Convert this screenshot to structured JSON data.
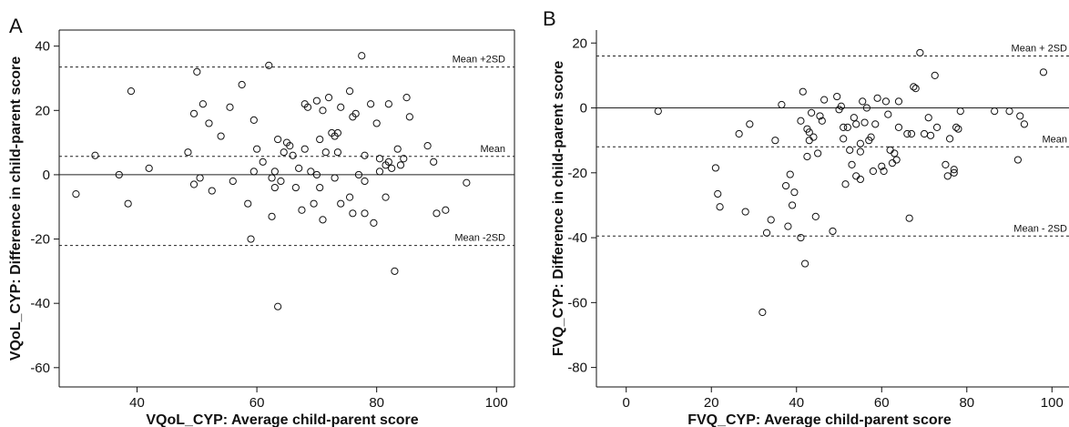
{
  "chart_data": [
    {
      "panel": "A",
      "type": "scatter",
      "xlabel": "VQoL_CYP: Average child-parent score",
      "ylabel": "VQoL_CYP: Difference in child-parent score",
      "xlim": [
        27,
        103
      ],
      "ylim": [
        -66,
        45
      ],
      "xticks": [
        40,
        60,
        80,
        100
      ],
      "yticks": [
        40,
        20,
        0,
        -20,
        -40,
        -60
      ],
      "lines": [
        {
          "label": "Mean +2SD",
          "y": 33.5,
          "style": "dotted"
        },
        {
          "label": "Mean",
          "y": 5.7,
          "style": "dotted"
        },
        {
          "label": "",
          "y": 0,
          "style": "solid"
        },
        {
          "label": "Mean -2SD",
          "y": -22,
          "style": "dotted"
        }
      ],
      "points": [
        [
          29.8,
          -6
        ],
        [
          33,
          6
        ],
        [
          37,
          0
        ],
        [
          38.5,
          -9
        ],
        [
          39,
          26
        ],
        [
          42,
          2
        ],
        [
          48.5,
          7
        ],
        [
          49.5,
          19
        ],
        [
          49.5,
          -3
        ],
        [
          50,
          32
        ],
        [
          50.5,
          -1
        ],
        [
          51,
          22
        ],
        [
          52,
          16
        ],
        [
          52.5,
          -5
        ],
        [
          54,
          12
        ],
        [
          55.5,
          21
        ],
        [
          56,
          -2
        ],
        [
          57.5,
          28
        ],
        [
          58.5,
          -9
        ],
        [
          59,
          -20
        ],
        [
          59.5,
          1
        ],
        [
          59.5,
          17
        ],
        [
          60,
          8
        ],
        [
          61,
          4
        ],
        [
          62,
          34
        ],
        [
          62.5,
          -13
        ],
        [
          62.5,
          -1
        ],
        [
          63,
          1
        ],
        [
          63,
          -4
        ],
        [
          63.5,
          11
        ],
        [
          63.5,
          -41
        ],
        [
          64,
          -2
        ],
        [
          64.5,
          7
        ],
        [
          65,
          10
        ],
        [
          65.5,
          9
        ],
        [
          66,
          6
        ],
        [
          66.5,
          -4
        ],
        [
          67,
          2
        ],
        [
          67.5,
          -11
        ],
        [
          68,
          8
        ],
        [
          68,
          22
        ],
        [
          68.5,
          21
        ],
        [
          69,
          1
        ],
        [
          69.5,
          -9
        ],
        [
          70,
          23
        ],
        [
          70,
          0
        ],
        [
          70.5,
          -4
        ],
        [
          70.5,
          11
        ],
        [
          71,
          -14
        ],
        [
          71,
          20
        ],
        [
          71.5,
          7
        ],
        [
          72,
          24
        ],
        [
          72.5,
          13
        ],
        [
          73,
          -1
        ],
        [
          73,
          12
        ],
        [
          73.5,
          7
        ],
        [
          73.5,
          13
        ],
        [
          74,
          -9
        ],
        [
          74,
          21
        ],
        [
          75.5,
          -7
        ],
        [
          75.5,
          26
        ],
        [
          76,
          18
        ],
        [
          76,
          -12
        ],
        [
          76.5,
          19
        ],
        [
          77,
          0
        ],
        [
          77.5,
          37
        ],
        [
          78,
          -12
        ],
        [
          78,
          6
        ],
        [
          78,
          -2
        ],
        [
          79,
          22
        ],
        [
          79.5,
          -15
        ],
        [
          80,
          16
        ],
        [
          80.5,
          5
        ],
        [
          80.5,
          1
        ],
        [
          81.5,
          3
        ],
        [
          81.5,
          -7
        ],
        [
          82,
          4
        ],
        [
          82.5,
          2
        ],
        [
          82,
          22
        ],
        [
          83,
          -30
        ],
        [
          83.5,
          8
        ],
        [
          84,
          3
        ],
        [
          84.5,
          5
        ],
        [
          85,
          24
        ],
        [
          85.5,
          18
        ],
        [
          88.5,
          9
        ],
        [
          89.5,
          4
        ],
        [
          90,
          -12
        ],
        [
          91.5,
          -11
        ],
        [
          95,
          -2.5
        ]
      ]
    },
    {
      "panel": "B",
      "type": "scatter",
      "xlabel": "FVQ_CYP: Average child-parent score",
      "ylabel": "FVQ_CYP: Difference in child-parent score",
      "xlim": [
        -7,
        104
      ],
      "ylim": [
        -86,
        24
      ],
      "xticks": [
        0,
        20,
        40,
        60,
        80,
        100
      ],
      "yticks": [
        20,
        0,
        -20,
        -40,
        -60,
        -80
      ],
      "lines": [
        {
          "label": "Mean + 2SD",
          "y": 16,
          "style": "dotted"
        },
        {
          "label": "",
          "y": 0,
          "style": "solid"
        },
        {
          "label": "Mean",
          "y": -12,
          "style": "dotted"
        },
        {
          "label": "Mean - 2SD",
          "y": -39.5,
          "style": "dotted"
        }
      ],
      "points": [
        [
          7.5,
          -1
        ],
        [
          21,
          -18.5
        ],
        [
          21.5,
          -26.5
        ],
        [
          22,
          -30.5
        ],
        [
          26.5,
          -8
        ],
        [
          28,
          -32
        ],
        [
          29,
          -5
        ],
        [
          32,
          -63
        ],
        [
          33,
          -38.5
        ],
        [
          34,
          -34.5
        ],
        [
          35,
          -10
        ],
        [
          36.5,
          1
        ],
        [
          37.5,
          -24
        ],
        [
          38,
          -36.5
        ],
        [
          38.5,
          -20.5
        ],
        [
          39,
          -30
        ],
        [
          39.5,
          -26
        ],
        [
          41,
          -40
        ],
        [
          41,
          -4
        ],
        [
          41.5,
          5
        ],
        [
          42,
          -48
        ],
        [
          42.5,
          -6.5
        ],
        [
          42.5,
          -15
        ],
        [
          43,
          -10
        ],
        [
          43,
          -7.5
        ],
        [
          43.5,
          -1.5
        ],
        [
          44,
          -9
        ],
        [
          44.5,
          -33.5
        ],
        [
          45,
          -14
        ],
        [
          45.5,
          -2.5
        ],
        [
          46,
          -4
        ],
        [
          46.5,
          2.5
        ],
        [
          48.5,
          -38
        ],
        [
          49.5,
          3.5
        ],
        [
          50,
          -0.5
        ],
        [
          50.5,
          0.5
        ],
        [
          51,
          -9.5
        ],
        [
          51,
          -6
        ],
        [
          51.5,
          -23.5
        ],
        [
          52,
          -6
        ],
        [
          52.5,
          -13
        ],
        [
          53,
          -17.5
        ],
        [
          53.5,
          -3
        ],
        [
          54,
          -5
        ],
        [
          54,
          -21
        ],
        [
          55,
          -13.5
        ],
        [
          55,
          -11
        ],
        [
          55,
          -22
        ],
        [
          55.5,
          2
        ],
        [
          56,
          -4.5
        ],
        [
          56.5,
          0
        ],
        [
          57,
          -10
        ],
        [
          57.5,
          -9
        ],
        [
          58,
          -19.5
        ],
        [
          58.5,
          -5
        ],
        [
          59,
          3
        ],
        [
          60,
          -18
        ],
        [
          60.5,
          -19.5
        ],
        [
          61,
          2
        ],
        [
          61.5,
          -2
        ],
        [
          62,
          -13
        ],
        [
          62.5,
          -17
        ],
        [
          63,
          -14
        ],
        [
          63.5,
          -16
        ],
        [
          64,
          -6
        ],
        [
          64,
          2
        ],
        [
          66,
          -8
        ],
        [
          66.5,
          -34
        ],
        [
          67,
          -8
        ],
        [
          67.5,
          6.5
        ],
        [
          68,
          6
        ],
        [
          69,
          17
        ],
        [
          70,
          -8
        ],
        [
          71,
          -3
        ],
        [
          71.5,
          -8.5
        ],
        [
          72.5,
          10
        ],
        [
          73,
          -6
        ],
        [
          75,
          -17.5
        ],
        [
          75.5,
          -21
        ],
        [
          76,
          -9.5
        ],
        [
          77,
          -20
        ],
        [
          77,
          -19
        ],
        [
          77.5,
          -6
        ],
        [
          78,
          -6.5
        ],
        [
          78.5,
          -1
        ],
        [
          86.5,
          -1
        ],
        [
          90,
          -1
        ],
        [
          92,
          -16
        ],
        [
          92.5,
          -2.5
        ],
        [
          93.5,
          -5
        ],
        [
          98,
          11
        ]
      ]
    }
  ]
}
